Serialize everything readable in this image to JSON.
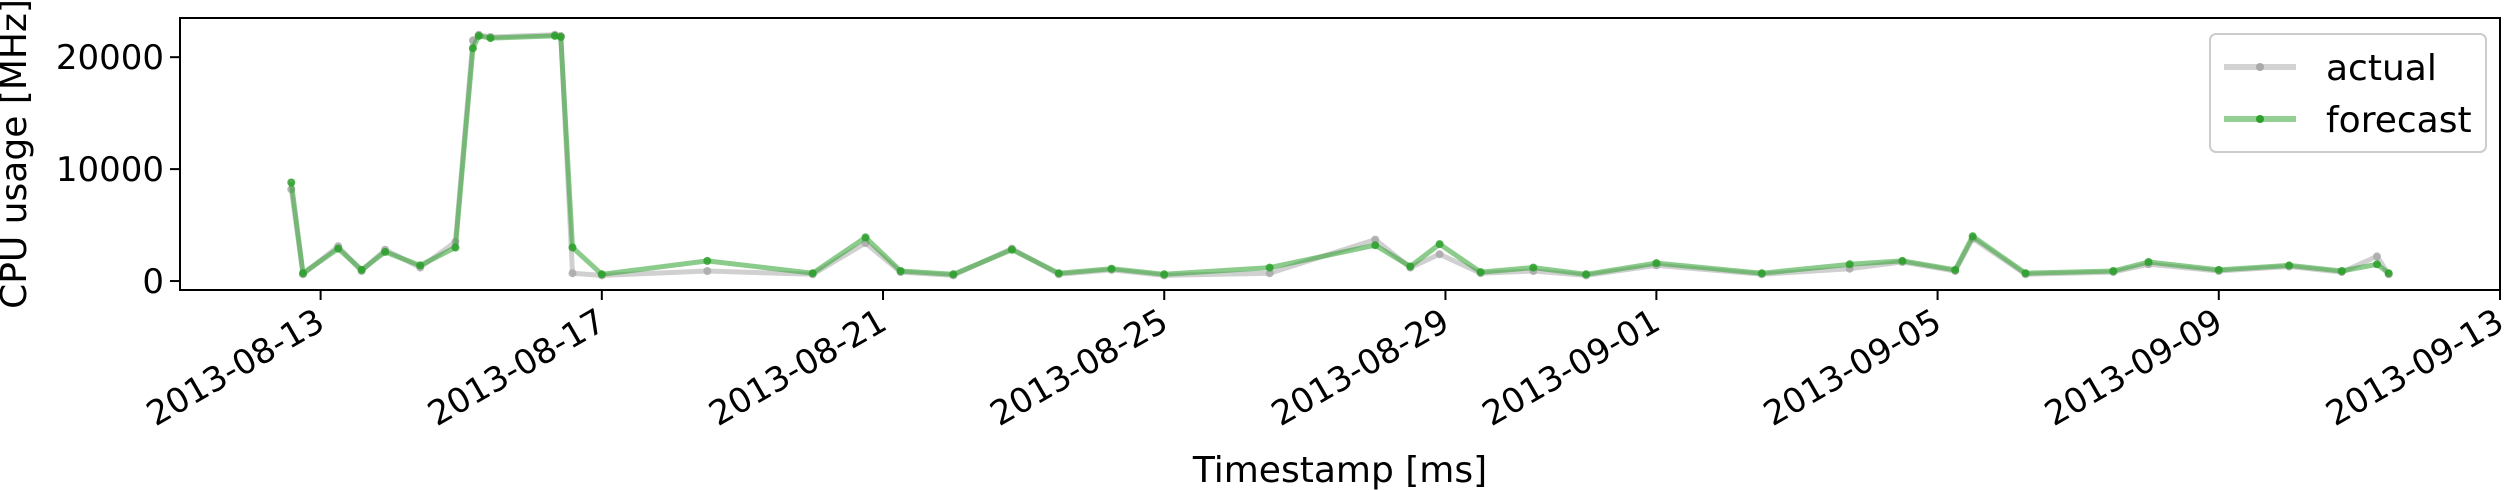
{
  "chart_data": {
    "type": "line",
    "xlabel": "Timestamp [ms]",
    "ylabel": "CPU usage [MHz]",
    "x_ticks": [
      "2013-08-13",
      "2013-08-17",
      "2013-08-21",
      "2013-08-25",
      "2013-08-29",
      "2013-09-01",
      "2013-09-05",
      "2013-09-09",
      "2013-09-13"
    ],
    "y_ticks": [
      0,
      10000,
      20000
    ],
    "ylim": [
      -800,
      23500
    ],
    "xlim": [
      "2013-08-11T00:00",
      "2013-09-13T00:00"
    ],
    "legend": {
      "placement": "top-right",
      "entries": [
        "actual",
        "forecast"
      ]
    },
    "series": [
      {
        "name": "actual",
        "color": "#a9a9a9",
        "x": [
          "2013-08-12T14:00",
          "2013-08-12T18:00",
          "2013-08-13T06:00",
          "2013-08-13T14:00",
          "2013-08-13T22:00",
          "2013-08-14T10:00",
          "2013-08-14T22:00",
          "2013-08-15T04:00",
          "2013-08-15T06:00",
          "2013-08-15T10:00",
          "2013-08-16T08:00",
          "2013-08-16T10:00",
          "2013-08-16T14:00",
          "2013-08-17T00:00",
          "2013-08-18T12:00",
          "2013-08-20T00:00",
          "2013-08-20T18:00",
          "2013-08-21T06:00",
          "2013-08-22T00:00",
          "2013-08-22T20:00",
          "2013-08-23T12:00",
          "2013-08-24T06:00",
          "2013-08-25T00:00",
          "2013-08-26T12:00",
          "2013-08-28T00:00",
          "2013-08-28T12:00",
          "2013-08-28T22:00",
          "2013-08-29T12:00",
          "2013-08-30T06:00",
          "2013-08-31T00:00",
          "2013-09-01T00:00",
          "2013-09-02T12:00",
          "2013-09-03T18:00",
          "2013-09-04T12:00",
          "2013-09-05T06:00",
          "2013-09-05T12:00",
          "2013-09-06T06:00",
          "2013-09-07T12:00",
          "2013-09-08T00:00",
          "2013-09-09T00:00",
          "2013-09-10T00:00",
          "2013-09-10T18:00",
          "2013-09-11T06:00",
          "2013-09-11T10:00"
        ],
        "y": [
          8200,
          600,
          3100,
          900,
          2800,
          1200,
          3500,
          21500,
          22000,
          21800,
          22000,
          21900,
          700,
          500,
          900,
          600,
          3400,
          800,
          500,
          2900,
          600,
          1000,
          500,
          700,
          3700,
          1200,
          2400,
          700,
          900,
          500,
          1400,
          600,
          1100,
          1700,
          900,
          3800,
          600,
          800,
          1500,
          900,
          1300,
          800,
          2200,
          600
        ]
      },
      {
        "name": "forecast",
        "color": "#2ca02c",
        "x": [
          "2013-08-12T14:00",
          "2013-08-12T18:00",
          "2013-08-13T06:00",
          "2013-08-13T14:00",
          "2013-08-13T22:00",
          "2013-08-14T10:00",
          "2013-08-14T22:00",
          "2013-08-15T04:00",
          "2013-08-15T06:00",
          "2013-08-15T10:00",
          "2013-08-16T08:00",
          "2013-08-16T10:00",
          "2013-08-16T14:00",
          "2013-08-17T00:00",
          "2013-08-18T12:00",
          "2013-08-20T00:00",
          "2013-08-20T18:00",
          "2013-08-21T06:00",
          "2013-08-22T00:00",
          "2013-08-22T20:00",
          "2013-08-23T12:00",
          "2013-08-24T06:00",
          "2013-08-25T00:00",
          "2013-08-26T12:00",
          "2013-08-28T00:00",
          "2013-08-28T12:00",
          "2013-08-28T22:00",
          "2013-08-29T12:00",
          "2013-08-30T06:00",
          "2013-08-31T00:00",
          "2013-09-01T00:00",
          "2013-09-02T12:00",
          "2013-09-03T18:00",
          "2013-09-04T12:00",
          "2013-09-05T06:00",
          "2013-09-05T12:00",
          "2013-09-06T06:00",
          "2013-09-07T12:00",
          "2013-09-08T00:00",
          "2013-09-09T00:00",
          "2013-09-10T00:00",
          "2013-09-10T18:00",
          "2013-09-11T06:00",
          "2013-09-11T10:00"
        ],
        "y": [
          8800,
          700,
          2900,
          1000,
          2600,
          1400,
          3000,
          20800,
          21900,
          21700,
          21900,
          21800,
          3000,
          600,
          1800,
          700,
          3900,
          900,
          600,
          2800,
          700,
          1100,
          600,
          1200,
          3200,
          1300,
          3300,
          800,
          1200,
          600,
          1600,
          700,
          1500,
          1800,
          1000,
          4000,
          700,
          900,
          1700,
          1000,
          1400,
          900,
          1500,
          700
        ]
      }
    ]
  }
}
